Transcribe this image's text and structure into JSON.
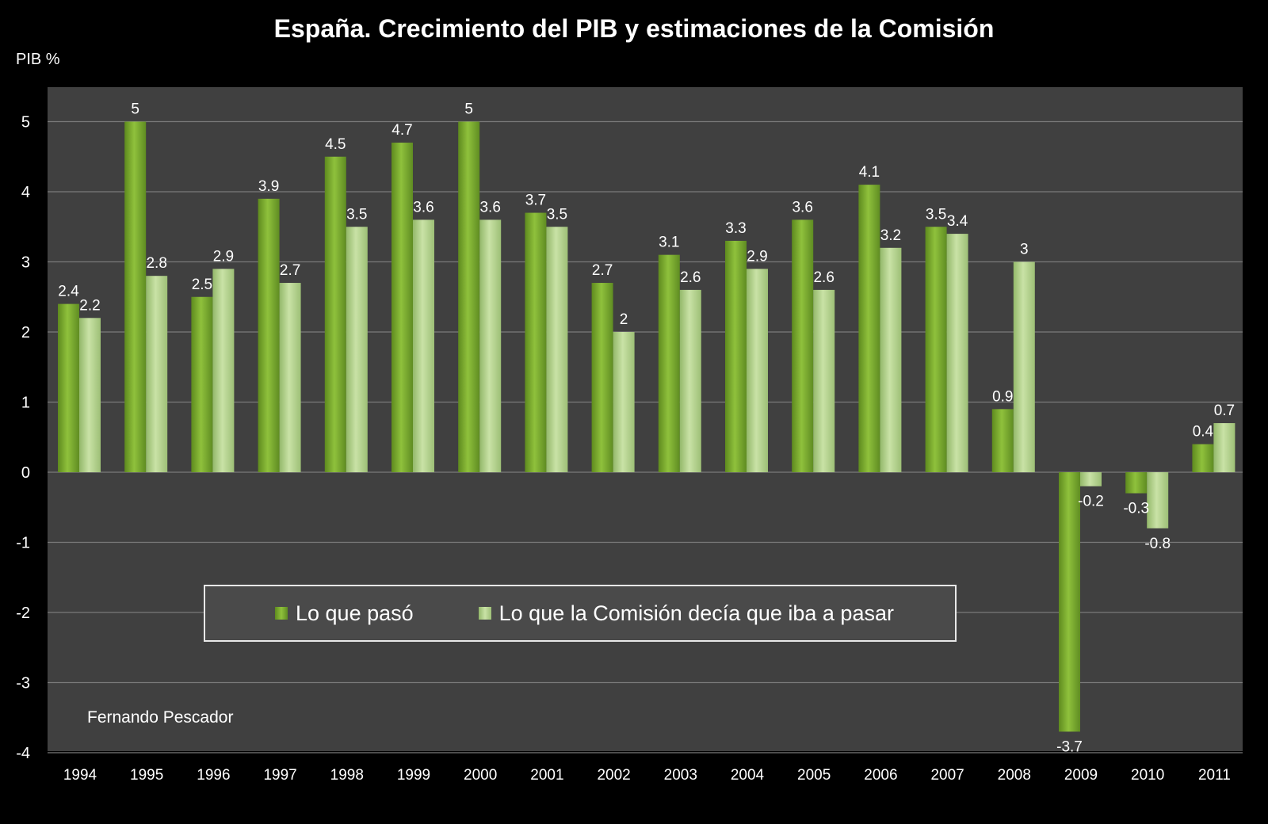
{
  "title": "España. Crecimiento del PIB y estimaciones de la Comisión",
  "author": "Fernando Pescador",
  "colors": {
    "background": "#000000",
    "plot_background": "#404040",
    "series_actual": "#7aab2e",
    "series_estimate": "#b4d38d"
  },
  "chart_data": {
    "type": "bar",
    "title": "España. Crecimiento del PIB y estimaciones de la Comisión",
    "xlabel": "",
    "ylabel": "PIB %",
    "ylim": [
      -4,
      5.5
    ],
    "yticks": [
      5,
      4,
      3,
      2,
      1,
      0,
      -1,
      -2,
      -3,
      -4
    ],
    "grid": true,
    "legend_position": "bottom-center-inside",
    "categories": [
      "1994",
      "1995",
      "1996",
      "1997",
      "1998",
      "1999",
      "2000",
      "2001",
      "2002",
      "2003",
      "2004",
      "2005",
      "2006",
      "2007",
      "2008",
      "2009",
      "2010",
      "2011"
    ],
    "series": [
      {
        "name": "Lo que pasó",
        "values": [
          2.4,
          5,
          2.5,
          3.9,
          4.5,
          4.7,
          5,
          3.7,
          2.7,
          3.1,
          3.3,
          3.6,
          4.1,
          3.5,
          0.9,
          -3.7,
          -0.3,
          0.4
        ],
        "labels": [
          "2.4",
          "5",
          "2.5",
          "3.9",
          "4.5",
          "4.7",
          "5",
          "3.7",
          "2.7",
          "3.1",
          "3.3",
          "3.6",
          "4.1",
          "3.5",
          "0.9",
          "-3.7",
          "-0.3",
          "0.4"
        ]
      },
      {
        "name": "Lo que la Comisión decía que iba a pasar",
        "values": [
          2.2,
          2.8,
          2.9,
          2.7,
          3.5,
          3.6,
          3.6,
          3.5,
          2,
          2.6,
          2.9,
          2.6,
          3.2,
          3.4,
          3,
          -0.2,
          -0.8,
          0.7
        ],
        "labels": [
          "2.2",
          "2.8",
          "2.9",
          "2.7",
          "3.5",
          "3.6",
          "3.6",
          "3.5",
          "2",
          "2.6",
          "2.9",
          "2.6",
          "3.2",
          "3.4",
          "3",
          "-0.2",
          "-0.8",
          "0.7"
        ]
      }
    ]
  }
}
